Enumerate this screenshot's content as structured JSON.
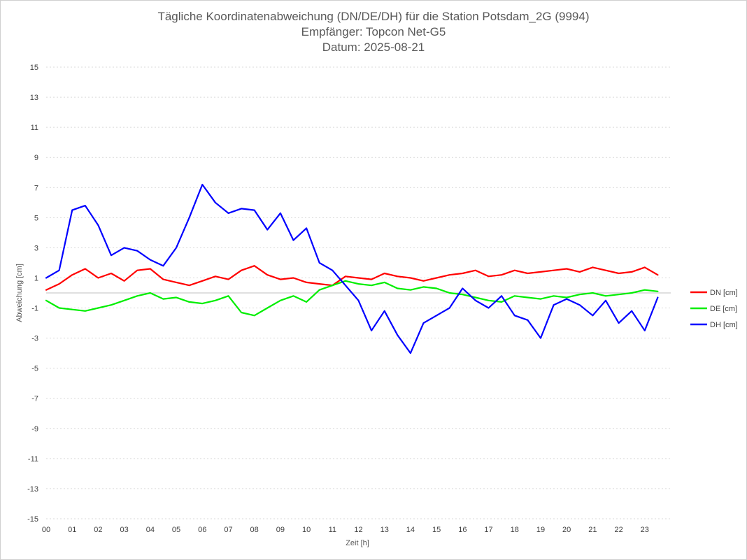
{
  "chart_data": {
    "type": "line",
    "title_lines": [
      "Tägliche Koordinatenabweichung (DN/DE/DH) für die Station Potsdam_2G (9994)",
      "Empfänger: Topcon Net-G5",
      "Datum: 2025-08-21"
    ],
    "xlabel": "Zeit [h]",
    "ylabel": "Abweichung [cm]",
    "xlim": [
      0,
      24
    ],
    "ylim": [
      -15,
      15
    ],
    "x_ticks": [
      0,
      1,
      2,
      3,
      4,
      5,
      6,
      7,
      8,
      9,
      10,
      11,
      12,
      13,
      14,
      15,
      16,
      17,
      18,
      19,
      20,
      21,
      22,
      23
    ],
    "x_tick_labels": [
      "00",
      "01",
      "02",
      "03",
      "04",
      "05",
      "06",
      "07",
      "08",
      "09",
      "10",
      "11",
      "12",
      "13",
      "14",
      "15",
      "16",
      "17",
      "18",
      "19",
      "20",
      "21",
      "22",
      "23"
    ],
    "y_ticks": [
      15,
      13,
      11,
      9,
      7,
      5,
      3,
      1,
      -1,
      -3,
      -5,
      -7,
      -9,
      -11,
      -13,
      -15
    ],
    "y_tick_labels": [
      "15",
      "13",
      "11",
      "9",
      "7",
      "5",
      "3",
      "1",
      "-1",
      "-3",
      "-5",
      "-7",
      "-9",
      "-11",
      "-13",
      "-15"
    ],
    "grid": "horizontal dashed",
    "legend_position": "right",
    "sample_interval_h": 0.5,
    "series": [
      {
        "name": "DN [cm]",
        "color": "#ff0000",
        "values": [
          0.2,
          0.6,
          1.2,
          1.6,
          1.0,
          1.3,
          0.8,
          1.5,
          1.6,
          0.9,
          0.7,
          0.5,
          0.8,
          1.1,
          0.9,
          1.5,
          1.8,
          1.2,
          0.9,
          1.0,
          0.7,
          0.6,
          0.5,
          1.1,
          1.0,
          0.9,
          1.3,
          1.1,
          1.0,
          0.8,
          1.0,
          1.2,
          1.3,
          1.5,
          1.1,
          1.2,
          1.5,
          1.3,
          1.4,
          1.5,
          1.6,
          1.4,
          1.7,
          1.5,
          1.3,
          1.4,
          1.7,
          1.2
        ]
      },
      {
        "name": "DE [cm]",
        "color": "#00ee00",
        "values": [
          -0.5,
          -1.0,
          -1.1,
          -1.2,
          -1.0,
          -0.8,
          -0.5,
          -0.2,
          0.0,
          -0.4,
          -0.3,
          -0.6,
          -0.7,
          -0.5,
          -0.2,
          -1.3,
          -1.5,
          -1.0,
          -0.5,
          -0.2,
          -0.6,
          0.2,
          0.5,
          0.8,
          0.6,
          0.5,
          0.7,
          0.3,
          0.2,
          0.4,
          0.3,
          0.0,
          -0.1,
          -0.3,
          -0.5,
          -0.6,
          -0.2,
          -0.3,
          -0.4,
          -0.2,
          -0.3,
          -0.1,
          0.0,
          -0.2,
          -0.1,
          0.0,
          0.2,
          0.1
        ]
      },
      {
        "name": "DH [cm]",
        "color": "#0000ff",
        "values": [
          1.0,
          1.5,
          5.5,
          5.8,
          4.5,
          2.5,
          3.0,
          2.8,
          2.2,
          1.8,
          3.0,
          5.0,
          7.2,
          6.0,
          5.3,
          5.6,
          5.5,
          4.2,
          5.3,
          3.5,
          4.3,
          2.0,
          1.5,
          0.5,
          -0.5,
          -2.5,
          -1.2,
          -2.8,
          -4.0,
          -2.0,
          -1.5,
          -1.0,
          0.3,
          -0.5,
          -1.0,
          -0.2,
          -1.5,
          -1.8,
          -3.0,
          -0.8,
          -0.4,
          -0.8,
          -1.5,
          -0.5,
          -2.0,
          -1.2,
          -2.5,
          -0.3
        ]
      }
    ]
  }
}
